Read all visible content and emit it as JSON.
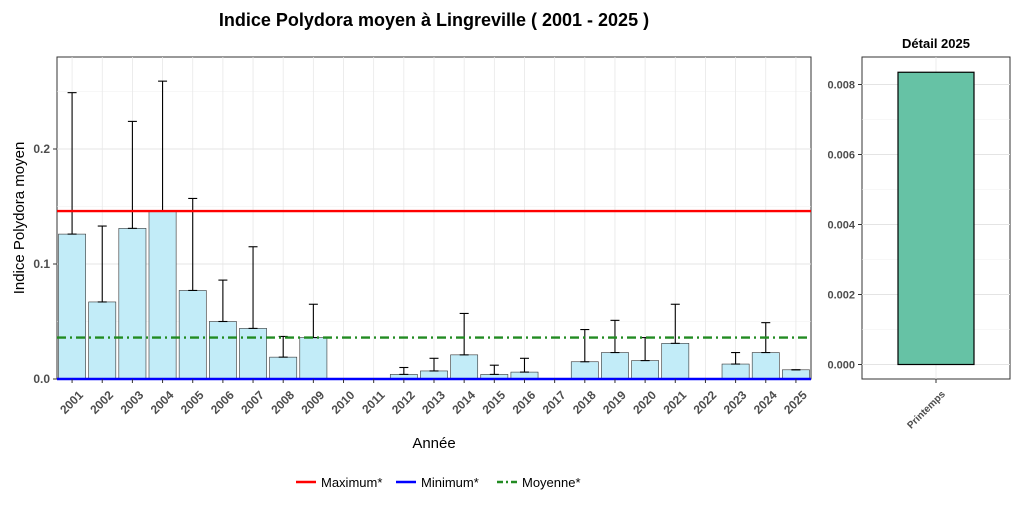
{
  "title": "Indice Polydora moyen à Lingreville ( 2001 - 2025 )",
  "chart_data": [
    {
      "type": "bar",
      "xlabel": "Année",
      "ylabel": "Indice Polydora moyen",
      "ylim": [
        0,
        0.28
      ],
      "yticks": [
        0.0,
        0.1,
        0.2
      ],
      "ytick_labels": [
        "0.0",
        "0.1",
        "0.2"
      ],
      "grid": true,
      "categories": [
        "2001",
        "2002",
        "2003",
        "2004",
        "2005",
        "2006",
        "2007",
        "2008",
        "2009",
        "2010",
        "2011",
        "2012",
        "2013",
        "2014",
        "2015",
        "2016",
        "2017",
        "2018",
        "2019",
        "2020",
        "2021",
        "2022",
        "2023",
        "2024",
        "2025"
      ],
      "values": [
        0.126,
        0.067,
        0.131,
        0.146,
        0.077,
        0.05,
        0.044,
        0.019,
        0.036,
        0,
        0,
        0.004,
        0.007,
        0.021,
        0.004,
        0.006,
        0,
        0.015,
        0.023,
        0.016,
        0.031,
        0,
        0.013,
        0.023,
        0.008
      ],
      "error_upper": [
        0.249,
        0.133,
        0.224,
        0.259,
        0.157,
        0.086,
        0.115,
        0.037,
        0.065,
        null,
        null,
        0.01,
        0.018,
        0.057,
        0.012,
        0.018,
        null,
        0.043,
        0.051,
        0.036,
        0.065,
        null,
        0.023,
        0.049,
        0.008
      ],
      "bar_color": "#c2ecf8",
      "reference_lines": [
        {
          "name": "Maximum*",
          "value": 0.146,
          "color": "#ff0000",
          "style": "solid"
        },
        {
          "name": "Minimum*",
          "value": 0.0,
          "color": "#0000ff",
          "style": "solid"
        },
        {
          "name": "Moyenne*",
          "value": 0.036,
          "color": "#228b22",
          "style": "dashdot"
        }
      ],
      "legend_position": "bottom"
    },
    {
      "type": "bar",
      "title": "Détail 2025",
      "categories": [
        "Printemps"
      ],
      "values": [
        0.00835
      ],
      "ylim": [
        0,
        0.0088
      ],
      "yticks": [
        0.0,
        0.002,
        0.004,
        0.006,
        0.008
      ],
      "ytick_labels": [
        "0.000",
        "0.002",
        "0.004",
        "0.006",
        "0.008"
      ],
      "bar_color": "#66c2a5",
      "grid": true
    }
  ]
}
